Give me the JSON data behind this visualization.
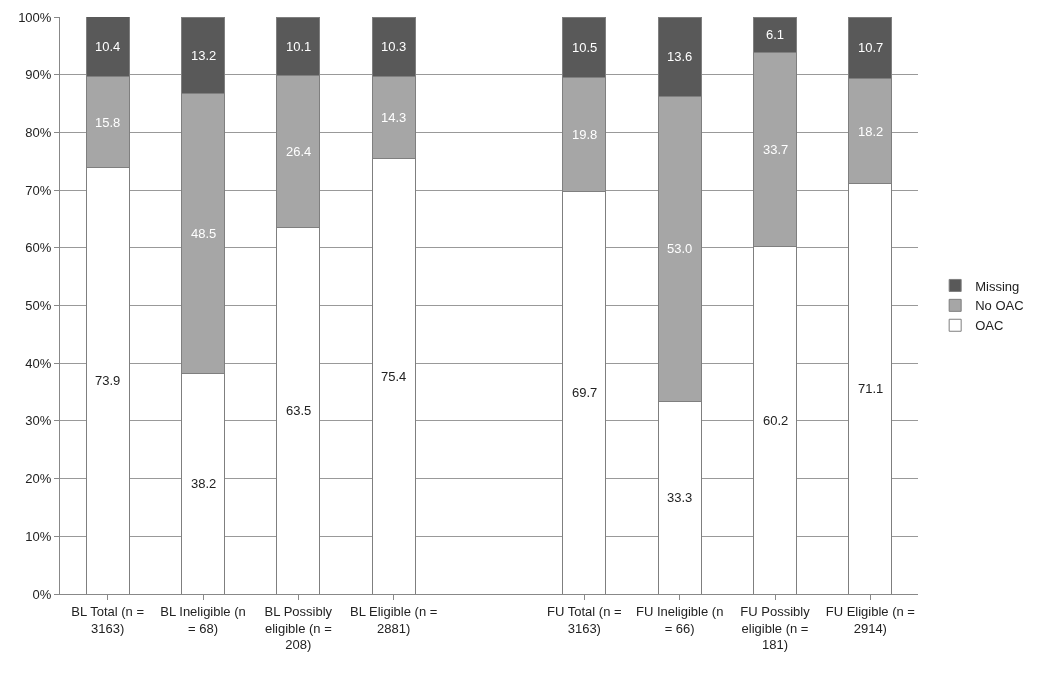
{
  "chart_data": {
    "type": "bar",
    "stacked": true,
    "legend": "right",
    "grid": "y",
    "categories": [
      "BL Total (n = 3163)",
      "BL Ineligible (n = 68)",
      "BL Possibly eligible (n = 208)",
      "BL Eligible (n = 2881)",
      null,
      "FU Total (n = 3163)",
      "FU Ineligible (n = 66)",
      "FU Possibly eligible (n = 181)",
      "FU Eligible (n = 2914)"
    ],
    "series": [
      {
        "name": "OAC",
        "color": "#ffffff",
        "values": [
          73.9,
          38.2,
          63.5,
          75.4,
          null,
          69.7,
          33.3,
          60.2,
          71.1
        ],
        "value_labels": [
          "73.9",
          "38.2",
          "63.5",
          "75.4",
          null,
          "69.7",
          "33.3",
          "60.2",
          "71.1"
        ]
      },
      {
        "name": "No OAC",
        "color": "#a6a6a6",
        "values": [
          15.8,
          48.5,
          26.4,
          14.3,
          null,
          19.8,
          53.0,
          33.7,
          18.2
        ],
        "value_labels": [
          "15.8",
          "48.5",
          "26.4",
          "14.3",
          null,
          "19.8",
          "53.0",
          "33.7",
          "18.2"
        ]
      },
      {
        "name": "Missing",
        "color": "#595959",
        "values": [
          10.4,
          13.2,
          10.1,
          10.3,
          null,
          10.5,
          13.6,
          6.1,
          10.7
        ],
        "value_labels": [
          "10.4",
          "13.2",
          "10.1",
          "10.3",
          null,
          "10.5",
          "13.6",
          "6.1",
          "10.7"
        ]
      }
    ],
    "ylim": [
      0,
      100
    ],
    "yticks": [
      {
        "value": 0,
        "label": "0%"
      },
      {
        "value": 10,
        "label": "10%"
      },
      {
        "value": 20,
        "label": "20%"
      },
      {
        "value": 30,
        "label": "30%"
      },
      {
        "value": 40,
        "label": "40%"
      },
      {
        "value": 50,
        "label": "50%"
      },
      {
        "value": 60,
        "label": "60%"
      },
      {
        "value": 70,
        "label": "70%"
      },
      {
        "value": 80,
        "label": "80%"
      },
      {
        "value": 90,
        "label": "90%"
      },
      {
        "value": 100,
        "label": "100%"
      }
    ]
  }
}
